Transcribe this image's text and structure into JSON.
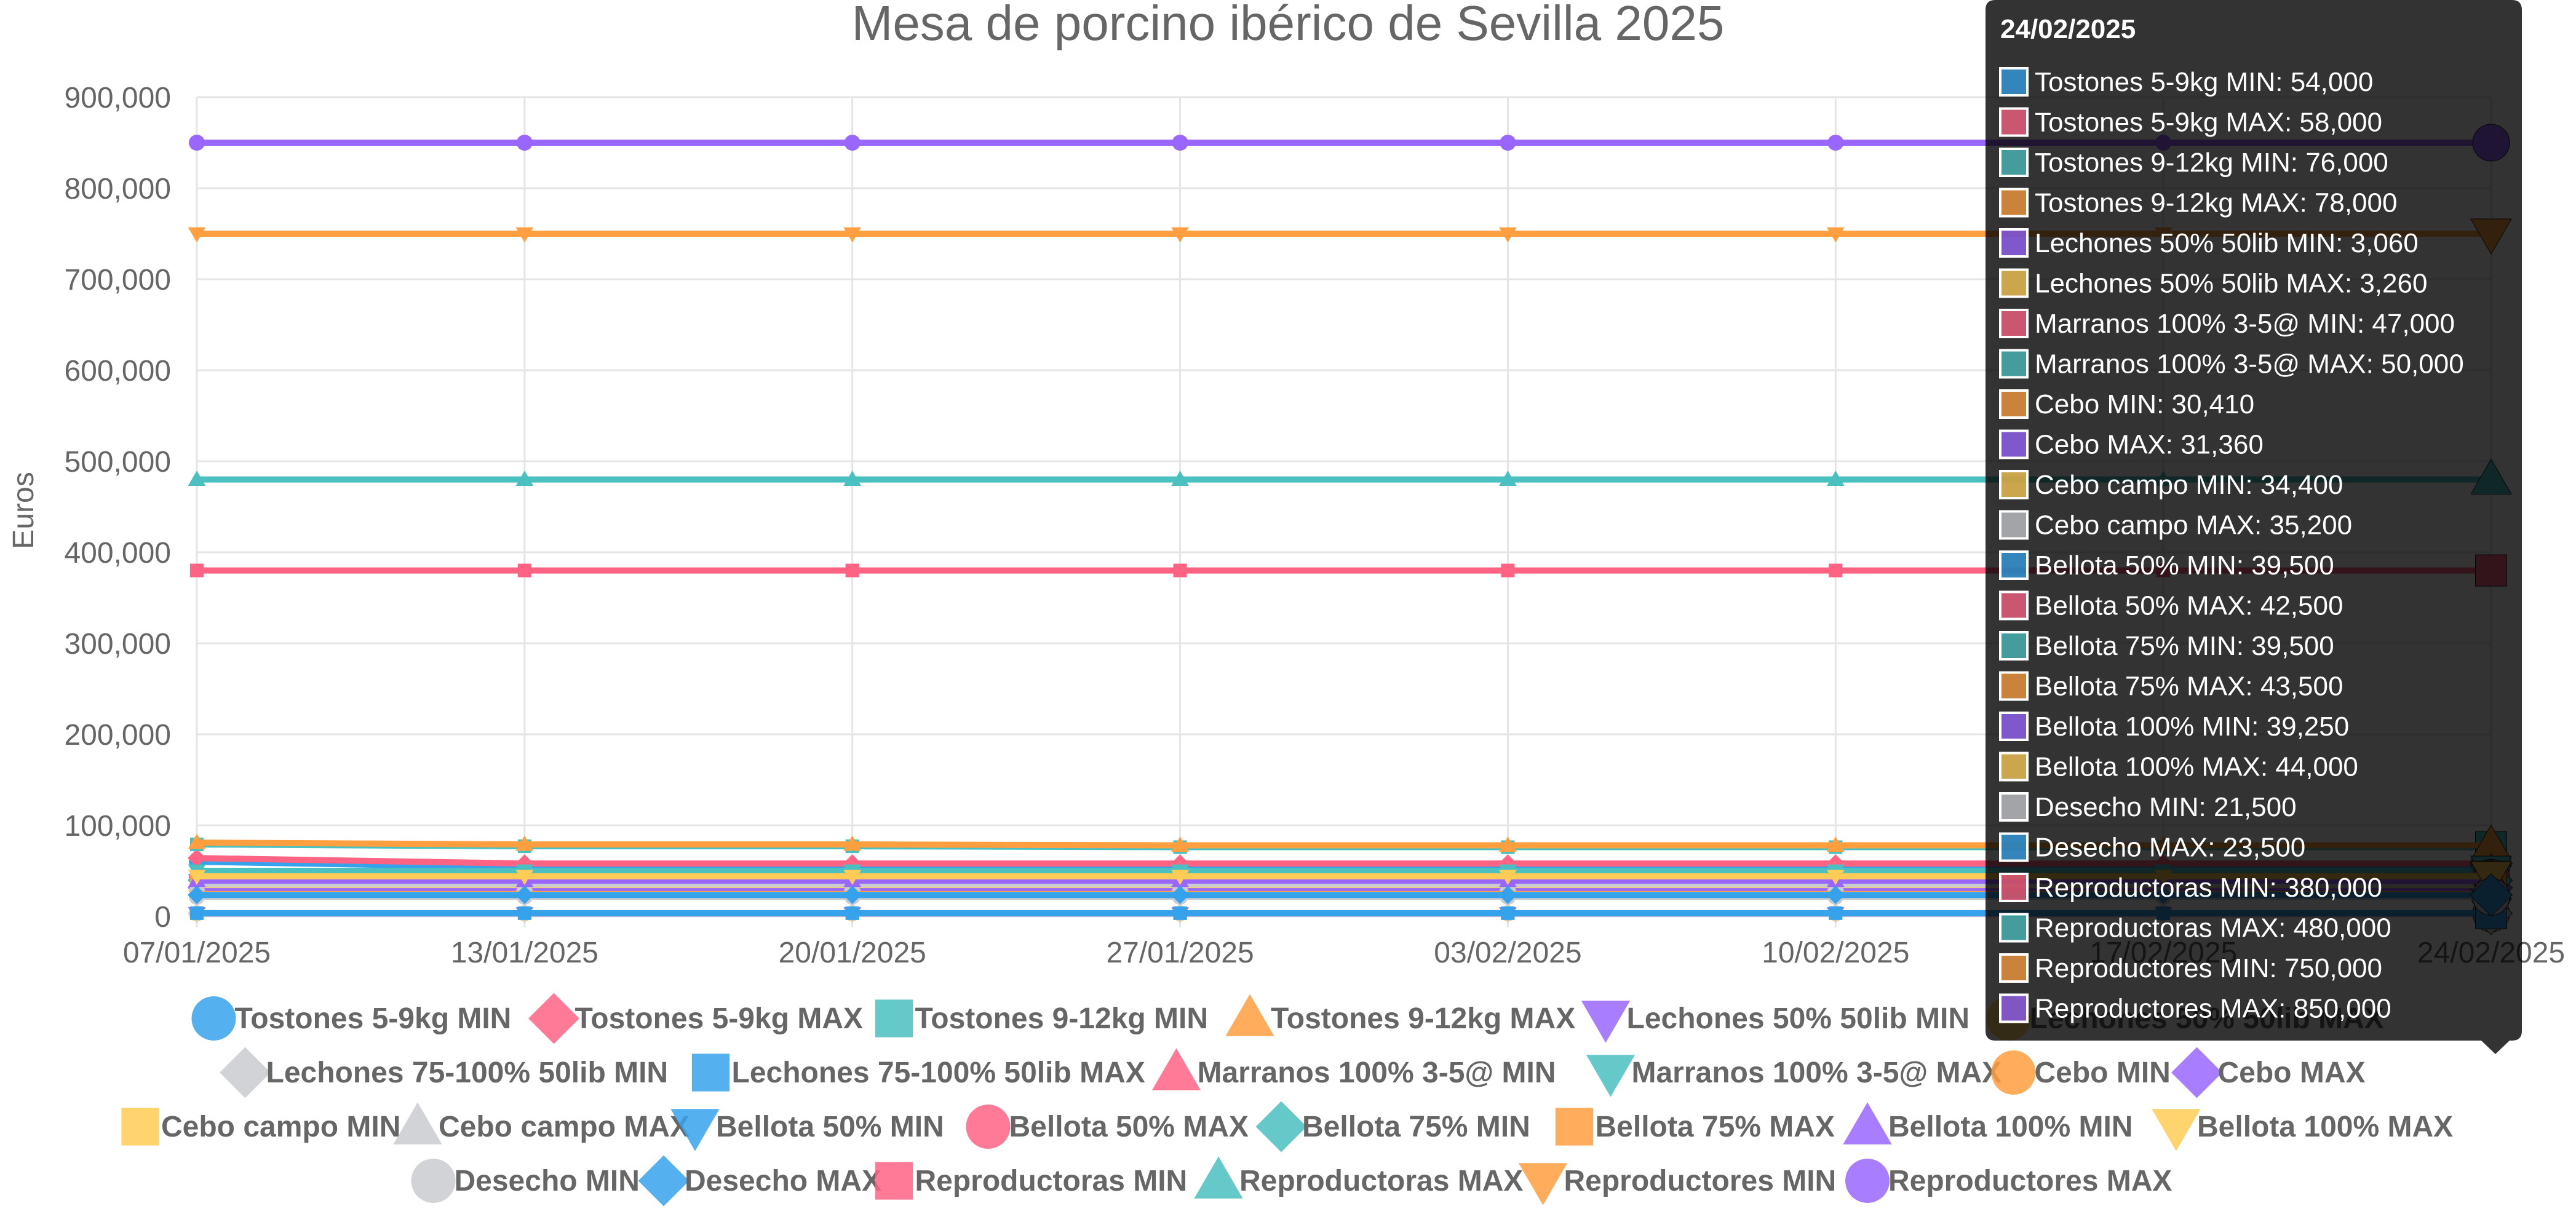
{
  "chart_data": {
    "type": "line",
    "title": "Mesa de porcino ibérico de Sevilla 2025",
    "ylabel": "Euros",
    "xlabel": "",
    "categories": [
      "07/01/2025",
      "13/01/2025",
      "20/01/2025",
      "27/01/2025",
      "03/02/2025",
      "10/02/2025",
      "17/02/2025",
      "24/02/2025"
    ],
    "ylim": [
      0,
      900000
    ],
    "yticks": [
      0,
      100000,
      200000,
      300000,
      400000,
      500000,
      600000,
      700000,
      800000,
      900000
    ],
    "ytick_labels": [
      "0",
      "100,000",
      "200,000",
      "300,000",
      "400,000",
      "500,000",
      "600,000",
      "700,000",
      "800,000",
      "900,000"
    ],
    "grid": true,
    "legend_position": "bottom",
    "series": [
      {
        "name": "Tostones 5-9kg MIN",
        "color": "#36a2eb",
        "marker": "circle",
        "values": [
          60000,
          54000,
          54000,
          54000,
          54000,
          54000,
          54000,
          54000
        ]
      },
      {
        "name": "Tostones 5-9kg MAX",
        "color": "#ff6384",
        "marker": "diamond",
        "values": [
          64000,
          58000,
          58000,
          58000,
          58000,
          58000,
          58000,
          58000
        ]
      },
      {
        "name": "Tostones 9-12kg MIN",
        "color": "#4bc0c0",
        "marker": "square",
        "values": [
          79000,
          77000,
          77000,
          76000,
          76000,
          76000,
          76000,
          76000
        ]
      },
      {
        "name": "Tostones 9-12kg MAX",
        "color": "#ff9f40",
        "marker": "triangle",
        "values": [
          81000,
          79000,
          79000,
          78000,
          78000,
          78000,
          78000,
          78000
        ]
      },
      {
        "name": "Lechones 50% 50lib MIN",
        "color": "#9966ff",
        "marker": "triangle-down",
        "values": [
          3060,
          3060,
          3060,
          3060,
          3060,
          3060,
          3060,
          3060
        ]
      },
      {
        "name": "Lechones 50% 50lib MAX",
        "color": "#ffcd56",
        "marker": "circle",
        "values": [
          3260,
          3260,
          3260,
          3260,
          3260,
          3260,
          3260,
          3260
        ]
      },
      {
        "name": "Lechones 75-100% 50lib MIN",
        "color": "#c9cbcf",
        "marker": "diamond",
        "values": [
          3300,
          3300,
          3300,
          3300,
          3300,
          3300,
          3300,
          3300
        ]
      },
      {
        "name": "Lechones 75-100% 50lib MAX",
        "color": "#36a2eb",
        "marker": "square",
        "values": [
          3500,
          3500,
          3500,
          3500,
          3500,
          3500,
          3500,
          3500
        ]
      },
      {
        "name": "Marranos   100% 3-5@ MIN",
        "color": "#ff6384",
        "marker": "triangle",
        "values": [
          47000,
          47000,
          47000,
          47000,
          47000,
          47000,
          47000,
          47000
        ]
      },
      {
        "name": "Marranos 100% 3-5@ MAX",
        "color": "#4bc0c0",
        "marker": "triangle-down",
        "values": [
          50000,
          50000,
          50000,
          50000,
          50000,
          50000,
          50000,
          50000
        ]
      },
      {
        "name": "Cebo MIN",
        "color": "#ff9f40",
        "marker": "circle",
        "values": [
          30410,
          30410,
          30410,
          30410,
          30410,
          30410,
          30410,
          30410
        ]
      },
      {
        "name": "Cebo MAX",
        "color": "#9966ff",
        "marker": "diamond",
        "values": [
          31360,
          31360,
          31360,
          31360,
          31360,
          31360,
          31360,
          31360
        ]
      },
      {
        "name": "Cebo campo MIN",
        "color": "#ffcd56",
        "marker": "square",
        "values": [
          34400,
          34400,
          34400,
          34400,
          34400,
          34400,
          34400,
          34400
        ]
      },
      {
        "name": "Cebo campo MAX",
        "color": "#c9cbcf",
        "marker": "triangle",
        "values": [
          35200,
          35200,
          35200,
          35200,
          35200,
          35200,
          35200,
          35200
        ]
      },
      {
        "name": "Bellota 50% MIN",
        "color": "#36a2eb",
        "marker": "triangle-down",
        "values": [
          39500,
          39500,
          39500,
          39500,
          39500,
          39500,
          39500,
          39500
        ]
      },
      {
        "name": "Bellota 50% MAX",
        "color": "#ff6384",
        "marker": "circle",
        "values": [
          42500,
          42500,
          42500,
          42500,
          42500,
          42500,
          42500,
          42500
        ]
      },
      {
        "name": "Bellota 75% MIN",
        "color": "#4bc0c0",
        "marker": "diamond",
        "values": [
          39500,
          39500,
          39500,
          39500,
          39500,
          39500,
          39500,
          39500
        ]
      },
      {
        "name": "Bellota 75% MAX",
        "color": "#ff9f40",
        "marker": "square",
        "values": [
          43500,
          43500,
          43500,
          43500,
          43500,
          43500,
          43500,
          43500
        ]
      },
      {
        "name": "Bellota 100% MIN",
        "color": "#9966ff",
        "marker": "triangle",
        "values": [
          39250,
          39250,
          39250,
          39250,
          39250,
          39250,
          39250,
          39250
        ]
      },
      {
        "name": "Bellota 100% MAX",
        "color": "#ffcd56",
        "marker": "triangle-down",
        "values": [
          44000,
          44000,
          44000,
          44000,
          44000,
          44000,
          44000,
          44000
        ]
      },
      {
        "name": "Desecho MIN",
        "color": "#c9cbcf",
        "marker": "circle",
        "values": [
          21500,
          21500,
          21500,
          21500,
          21500,
          21500,
          21500,
          21500
        ]
      },
      {
        "name": "Desecho MAX",
        "color": "#36a2eb",
        "marker": "diamond",
        "values": [
          23500,
          23500,
          23500,
          23500,
          23500,
          23500,
          23500,
          23500
        ]
      },
      {
        "name": "Reproductoras MIN",
        "color": "#ff6384",
        "marker": "square",
        "values": [
          380000,
          380000,
          380000,
          380000,
          380000,
          380000,
          380000,
          380000
        ]
      },
      {
        "name": "Reproductoras MAX",
        "color": "#4bc0c0",
        "marker": "triangle",
        "values": [
          480000,
          480000,
          480000,
          480000,
          480000,
          480000,
          480000,
          480000
        ]
      },
      {
        "name": "Reproductores MIN",
        "color": "#ff9f40",
        "marker": "triangle-down",
        "values": [
          750000,
          750000,
          750000,
          750000,
          750000,
          750000,
          750000,
          750000
        ]
      },
      {
        "name": "Reproductores MAX",
        "color": "#9966ff",
        "marker": "circle",
        "values": [
          850000,
          850000,
          850000,
          850000,
          850000,
          850000,
          850000,
          850000
        ]
      }
    ]
  },
  "tooltip": {
    "title": "24/02/2025",
    "items": [
      {
        "text": "Tostones 5-9kg MIN: 54,000",
        "color": "#36a2eb"
      },
      {
        "text": "Tostones 5-9kg MAX: 58,000",
        "color": "#ff6384"
      },
      {
        "text": "Tostones 9-12kg MIN: 76,000",
        "color": "#4bc0c0"
      },
      {
        "text": "Tostones 9-12kg MAX: 78,000",
        "color": "#ff9f40"
      },
      {
        "text": "Lechones 50% 50lib MIN: 3,060",
        "color": "#9966ff"
      },
      {
        "text": "Lechones 50% 50lib MAX: 3,260",
        "color": "#ffcd56"
      },
      {
        "text": "Marranos   100% 3-5@ MIN: 47,000",
        "color": "#ff6384"
      },
      {
        "text": "Marranos 100% 3-5@ MAX: 50,000",
        "color": "#4bc0c0"
      },
      {
        "text": "Cebo MIN: 30,410",
        "color": "#ff9f40"
      },
      {
        "text": "Cebo MAX: 31,360",
        "color": "#9966ff"
      },
      {
        "text": "Cebo campo MIN: 34,400",
        "color": "#ffcd56"
      },
      {
        "text": "Cebo campo MAX: 35,200",
        "color": "#c9cbcf"
      },
      {
        "text": "Bellota 50% MIN: 39,500",
        "color": "#36a2eb"
      },
      {
        "text": "Bellota 50% MAX: 42,500",
        "color": "#ff6384"
      },
      {
        "text": "Bellota 75% MIN: 39,500",
        "color": "#4bc0c0"
      },
      {
        "text": "Bellota 75% MAX: 43,500",
        "color": "#ff9f40"
      },
      {
        "text": "Bellota 100% MIN: 39,250",
        "color": "#9966ff"
      },
      {
        "text": "Bellota 100% MAX: 44,000",
        "color": "#ffcd56"
      },
      {
        "text": "Desecho MIN: 21,500",
        "color": "#c9cbcf"
      },
      {
        "text": "Desecho MAX: 23,500",
        "color": "#36a2eb"
      },
      {
        "text": "Reproductoras MIN: 380,000",
        "color": "#ff6384"
      },
      {
        "text": "Reproductoras MAX: 480,000",
        "color": "#4bc0c0"
      },
      {
        "text": "Reproductores MIN: 750,000",
        "color": "#ff9f40"
      },
      {
        "text": "Reproductores MAX: 850,000",
        "color": "#9966ff"
      }
    ]
  }
}
